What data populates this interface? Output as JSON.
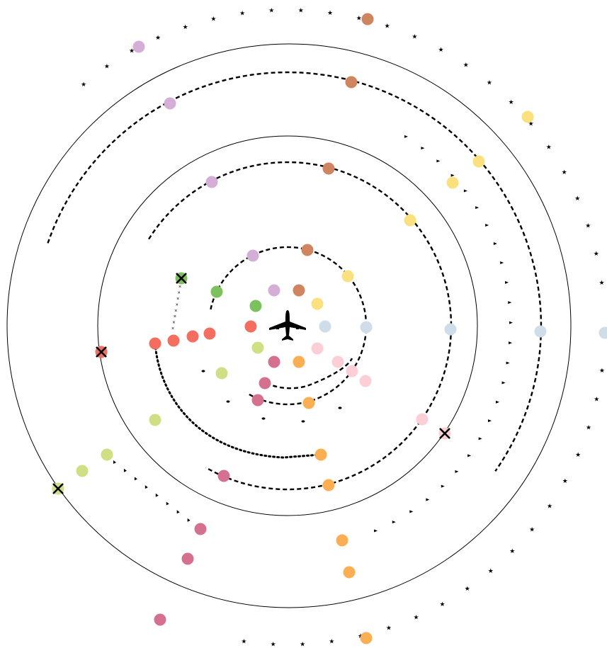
{
  "colors": {
    "stroke": "#000000",
    "background": "#ffffff",
    "purple": "#d4aed6",
    "brown": "#ce8560",
    "yellow": "#fbe07f",
    "lightblue": "#cfdde9",
    "pink": "#fcced6",
    "orange": "#fbae52",
    "magenta": "#d5708f",
    "lime": "#cfe084",
    "green": "#7cc15d",
    "red": "#f36e5e"
  },
  "diagram": {
    "center_icon": "airplane-icon",
    "elements": [
      "rings",
      "flight-paths",
      "waypoints",
      "crash-markers"
    ]
  }
}
